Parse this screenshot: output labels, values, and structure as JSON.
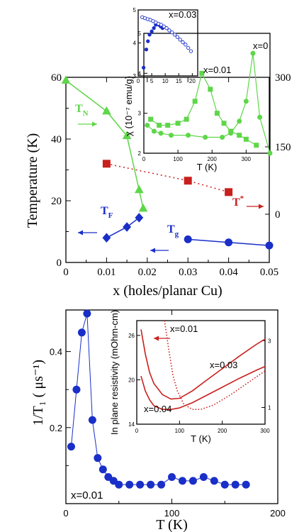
{
  "chart_data": [
    {
      "type": "line",
      "panel": "top-main",
      "xlabel": "x (holes/planar Cu)",
      "ylabel": "Temperature (K)",
      "xlim": [
        0,
        0.05
      ],
      "ylim": [
        0,
        60
      ],
      "xticks": [
        "0",
        "0.01",
        "0.02",
        "0.03",
        "0.04",
        "0.05"
      ],
      "yticks": [
        "0",
        "20",
        "40",
        "60"
      ],
      "right_axis_ticks": [
        "0",
        "150",
        "300"
      ],
      "series": [
        {
          "name": "T_N",
          "color": "#5ed649",
          "marker": "triangle",
          "x": [
            0,
            0.01,
            0.015,
            0.018,
            0.019
          ],
          "y": [
            59,
            49,
            41,
            23.5,
            17.5
          ],
          "style": "solid"
        },
        {
          "name": "T_F",
          "color": "#1a2fc7",
          "marker": "diamond",
          "x": [
            0.01,
            0.015,
            0.018
          ],
          "y": [
            8,
            11.5,
            14.5
          ],
          "style": "solid"
        },
        {
          "name": "T_g",
          "color": "#1a2fc7",
          "marker": "circle",
          "x": [
            0.03,
            0.04,
            0.05
          ],
          "y": [
            7.5,
            6.5,
            5.5
          ],
          "style": "solid"
        },
        {
          "name": "T*",
          "color": "#c8201d",
          "marker": "square",
          "x": [
            0.01,
            0.03,
            0.04
          ],
          "y": [
            32,
            26.5,
            22.8
          ],
          "style": "dotted"
        }
      ],
      "labels": {
        "tn": "T",
        "tn_sub": "N",
        "tf": "T",
        "tf_sub": "F",
        "tg": "T",
        "tg_sub": "g",
        "tstar": "T",
        "tstar_sup": "*"
      }
    },
    {
      "type": "line",
      "panel": "top-inset-susceptibility",
      "xlabel": "T (K)",
      "ylabel": "χ (10⁻⁷ emu/g)",
      "xlim": [
        0,
        370
      ],
      "ylim": [
        2,
        5
      ],
      "xticks": [
        "0",
        "100",
        "200",
        "300"
      ],
      "yticks": [
        "2",
        "3",
        "4",
        "5"
      ],
      "series": [
        {
          "name": "x=0",
          "color": "#5ed649",
          "marker": "circle",
          "x": [
            10,
            30,
            50,
            80,
            130,
            180,
            230,
            255,
            280,
            300,
            320,
            340,
            370
          ],
          "y": [
            2.7,
            2.55,
            2.5,
            2.45,
            2.45,
            2.4,
            2.4,
            2.5,
            2.8,
            3.3,
            4.5,
            2.9,
            2.0
          ]
        },
        {
          "name": "x=0.01",
          "color": "#5ed649",
          "marker": "square",
          "x": [
            20,
            45,
            70,
            100,
            125,
            150,
            170,
            195,
            215,
            235,
            255,
            280,
            300,
            330
          ],
          "y": [
            2.85,
            2.7,
            2.7,
            2.75,
            2.85,
            3.3,
            4.0,
            3.6,
            3.0,
            2.75,
            2.55,
            2.45,
            2.35,
            2.2
          ]
        }
      ],
      "labels": {
        "x0": "x=0",
        "x001": "x=0.01"
      }
    },
    {
      "type": "scatter",
      "panel": "top-inset-small",
      "xlim": [
        0,
        22
      ],
      "ylim": [
        3,
        5
      ],
      "xticks": [
        "0",
        "5",
        "10",
        "15",
        "20"
      ],
      "yticks": [
        "3",
        "4",
        "5"
      ],
      "series": [
        {
          "name": "x=0.03 (filled)",
          "color": "#1a2fc7",
          "filled": true,
          "x": [
            2,
            3,
            3.6,
            4.2,
            5,
            5.8,
            6.5,
            7,
            7.6,
            8.3,
            9
          ],
          "y": [
            3.25,
            3.8,
            4.05,
            4.25,
            4.35,
            4.45,
            4.55,
            4.58,
            4.55,
            4.5,
            4.45
          ]
        },
        {
          "name": "x=0.03 (open)",
          "color": "#1a2fc7",
          "filled": false,
          "x": [
            1.5,
            2.5,
            3.5,
            4.5,
            5.5,
            6.5,
            7.5,
            8.5,
            9.5,
            10.5,
            11.5,
            12.5,
            13.5,
            14.5,
            15.5,
            16.5,
            17.5,
            18.5,
            19.5
          ],
          "y": [
            4.78,
            4.75,
            4.72,
            4.7,
            4.66,
            4.62,
            4.58,
            4.55,
            4.5,
            4.45,
            4.38,
            4.32,
            4.25,
            4.18,
            4.1,
            4.02,
            3.95,
            3.85,
            3.75
          ]
        }
      ],
      "labels": {
        "x003": "x=0.03"
      }
    },
    {
      "type": "line",
      "panel": "bottom-main",
      "xlabel": "T (K)",
      "ylabel": "1/T₁ ( μs⁻¹)",
      "xlim": [
        0,
        200
      ],
      "ylim": [
        0,
        0.5
      ],
      "xticks": [
        "0",
        "100",
        "200"
      ],
      "yticks": [
        "0.2",
        "0.4"
      ],
      "series": [
        {
          "name": "x=0.01",
          "color": "#1a2fc7",
          "marker": "circle",
          "x": [
            5,
            10,
            15,
            20,
            25,
            30,
            35,
            40,
            45,
            50,
            60,
            70,
            80,
            90,
            100,
            110,
            120,
            130,
            140,
            150,
            160,
            170
          ],
          "y": [
            0.15,
            0.3,
            0.45,
            0.5,
            0.22,
            0.12,
            0.09,
            0.07,
            0.06,
            0.05,
            0.05,
            0.05,
            0.05,
            0.05,
            0.07,
            0.06,
            0.06,
            0.07,
            0.06,
            0.05,
            0.05,
            0.05
          ]
        }
      ],
      "labels": {
        "x001": "x=0.01"
      }
    },
    {
      "type": "line",
      "panel": "bottom-inset-resistivity",
      "xlabel": "T (K)",
      "ylabel": "In plane resistivity (mOhm-cm)",
      "xlim": [
        0,
        300
      ],
      "ylim_left": [
        14,
        28
      ],
      "ylim_right": [
        0.5,
        3.6
      ],
      "xticks": [
        "0",
        "100",
        "200",
        "300"
      ],
      "yticks_left": [
        "14",
        "20",
        "26"
      ],
      "yticks_right": [
        "1",
        "3"
      ],
      "series": [
        {
          "name": "x=0.03",
          "color": "#c8201d",
          "style": "solid",
          "x": [
            10,
            20,
            30,
            40,
            60,
            80,
            100,
            130,
            160,
            200,
            240,
            280,
            300
          ],
          "y": [
            26.8,
            23.5,
            21.0,
            19.5,
            18.0,
            17.4,
            17.5,
            18.5,
            19.8,
            21.5,
            23.2,
            24.8,
            25.5
          ]
        },
        {
          "name": "x=0.04",
          "color": "#c8201d",
          "style": "solid",
          "x": [
            10,
            20,
            30,
            40,
            60,
            80,
            100,
            130,
            160,
            200,
            240,
            280,
            300
          ],
          "y": [
            20.5,
            18.5,
            17.3,
            16.5,
            16.0,
            16.0,
            16.2,
            16.9,
            17.8,
            19.0,
            20.2,
            21.3,
            21.8
          ]
        },
        {
          "name": "x=0.01",
          "color": "#c8201d",
          "style": "dotted",
          "x": [
            65,
            75,
            85,
            95,
            110,
            130,
            150,
            180,
            220,
            260,
            300
          ],
          "y": [
            28,
            24,
            20.5,
            18.5,
            16.7,
            16.0,
            16.0,
            16.6,
            18.0,
            19.6,
            21.2
          ]
        }
      ],
      "labels": {
        "x001": "x=0.01",
        "x003": "x=0.03",
        "x004": "x=0.04"
      }
    }
  ]
}
